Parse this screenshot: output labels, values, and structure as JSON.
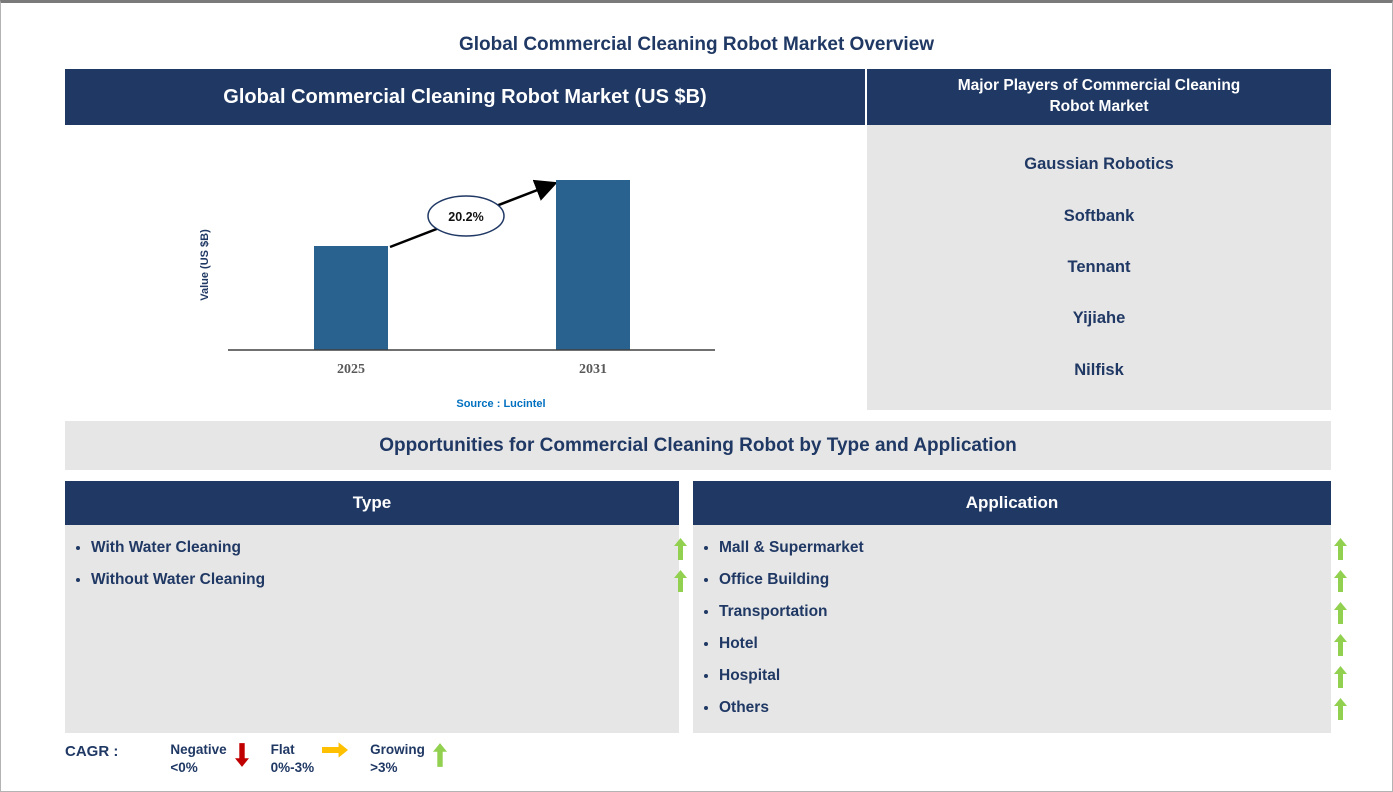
{
  "page": {
    "title": "Global Commercial Cleaning Robot Market Overview"
  },
  "market_chart": {
    "header": "Global Commercial Cleaning Robot Market (US $B)",
    "source": "Source : Lucintel"
  },
  "chart_data": {
    "type": "bar",
    "title": "Global Commercial Cleaning Robot Market (US $B)",
    "categories": [
      "2025",
      "2031"
    ],
    "values": [
      61,
      100
    ],
    "values_unit": "relative bar height % (absolute US $B values not labeled on chart)",
    "xlabel": "",
    "ylabel": "Value (US $B)",
    "annotation": "20.2%",
    "source": "Source : Lucintel",
    "bar_color": "#2A628F",
    "grid": false,
    "legend_shown": false
  },
  "major_players": {
    "header": "Major Players of Commercial Cleaning Robot Market",
    "items": [
      "Gaussian Robotics",
      "Softbank",
      "Tennant",
      "Yijiahe",
      "Nilfisk"
    ]
  },
  "opportunities": {
    "header": "Opportunities for Commercial Cleaning Robot by Type and Application",
    "type_panel": {
      "header": "Type",
      "items": [
        {
          "label": "With Water Cleaning",
          "trend": "Growing >3%"
        },
        {
          "label": "Without Water Cleaning",
          "trend": "Growing >3%"
        }
      ]
    },
    "application_panel": {
      "header": "Application",
      "items": [
        {
          "label": "Mall & Supermarket",
          "trend": "Growing >3%"
        },
        {
          "label": "Office Building",
          "trend": "Growing >3%"
        },
        {
          "label": "Transportation",
          "trend": "Growing >3%"
        },
        {
          "label": "Hotel",
          "trend": "Growing >3%"
        },
        {
          "label": "Hospital",
          "trend": "Growing >3%"
        },
        {
          "label": "Others",
          "trend": "Growing >3%"
        }
      ]
    }
  },
  "legend": {
    "label": "CAGR :",
    "entries": [
      {
        "label": "Negative",
        "range": "<0%",
        "icon": "down-arrow",
        "color": "#C00000"
      },
      {
        "label": "Flat",
        "range": "0%-3%",
        "icon": "right-arrow",
        "color": "#FFC000"
      },
      {
        "label": "Growing",
        "range": ">3%",
        "icon": "up-arrow",
        "color": "#92D050"
      }
    ]
  },
  "colors": {
    "header_navy": "#1F3864",
    "panel_gray": "#E7E6E6",
    "bar_blue": "#2A628F",
    "growing_green": "#92D050",
    "flat_yellow": "#FFC000",
    "negative_red": "#C00000",
    "source_blue": "#0070C0",
    "tick_gray": "#595959"
  }
}
